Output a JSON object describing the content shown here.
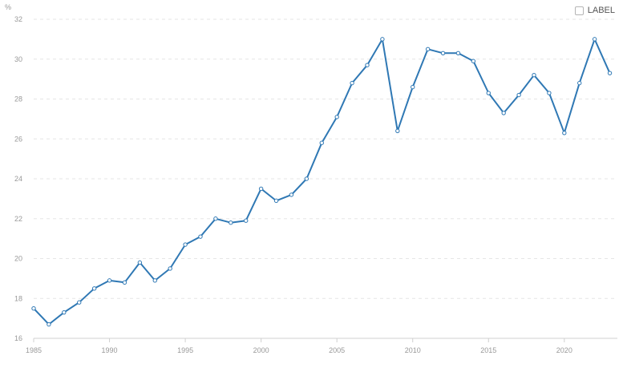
{
  "legend": {
    "label": "LABEL"
  },
  "chart_data": {
    "type": "line",
    "title": "",
    "xlabel": "",
    "ylabel": "%",
    "xlim": [
      1985,
      2023.5
    ],
    "ylim": [
      16,
      32
    ],
    "x_ticks": [
      1985,
      1990,
      1995,
      2000,
      2005,
      2010,
      2015,
      2020
    ],
    "y_ticks": [
      16,
      18,
      20,
      22,
      24,
      26,
      28,
      30,
      32
    ],
    "grid": "horizontal dashed",
    "line_color": "#2f78b4",
    "series": [
      {
        "x": [
          1985,
          1986,
          1987,
          1988,
          1989,
          1990,
          1991,
          1992,
          1993,
          1994,
          1995,
          1996,
          1997,
          1998,
          1999,
          2000,
          2001,
          2002,
          2003,
          2004,
          2005,
          2006,
          2007,
          2008,
          2009,
          2010,
          2011,
          2012,
          2013,
          2014,
          2015,
          2016,
          2017,
          2018,
          2019,
          2020,
          2021,
          2022,
          2023
        ],
        "values": [
          17.5,
          16.7,
          17.3,
          17.8,
          18.5,
          18.9,
          18.8,
          19.8,
          18.9,
          19.5,
          20.7,
          21.1,
          22.0,
          21.8,
          21.9,
          23.5,
          22.9,
          23.2,
          24.0,
          25.8,
          27.1,
          28.8,
          29.7,
          31.0,
          26.4,
          28.6,
          30.5,
          30.3,
          30.3,
          29.9,
          28.3,
          27.3,
          28.2,
          29.2,
          28.3,
          26.3,
          28.8,
          31.0,
          29.3
        ]
      }
    ]
  }
}
